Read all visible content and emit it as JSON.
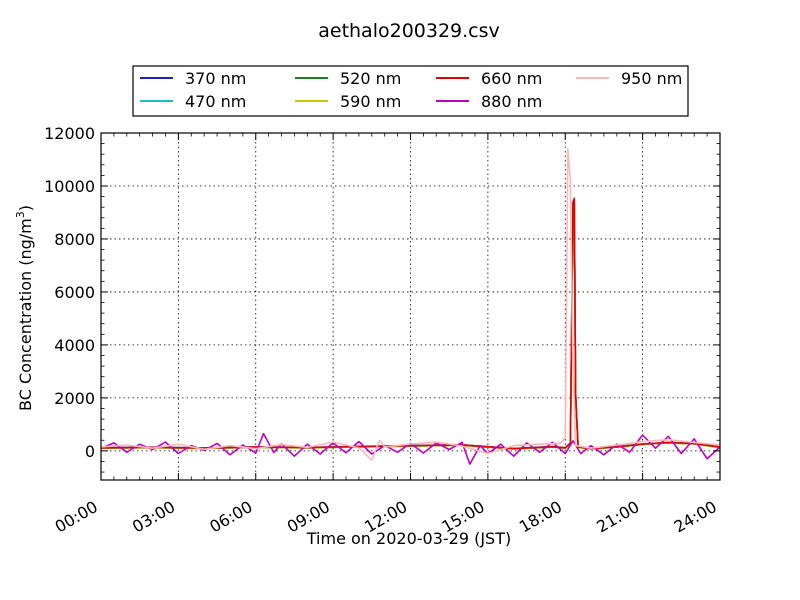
{
  "chart_data": {
    "type": "line",
    "title": "aethalo200329.csv",
    "xlabel": "Time on 2020-03-29 (JST)",
    "ylabel_main": "BC Concentration (ng/m",
    "ylabel_sup": "3",
    "ylabel_end": ")",
    "xlim_hours": [
      0,
      24
    ],
    "ylim": [
      -1100,
      12000
    ],
    "grid": true,
    "legend_placement": "top-center",
    "x_ticks": [
      {
        "h": 0,
        "label": "00:00"
      },
      {
        "h": 3,
        "label": "03:00"
      },
      {
        "h": 6,
        "label": "06:00"
      },
      {
        "h": 9,
        "label": "09:00"
      },
      {
        "h": 12,
        "label": "12:00"
      },
      {
        "h": 15,
        "label": "15:00"
      },
      {
        "h": 18,
        "label": "18:00"
      },
      {
        "h": 21,
        "label": "21:00"
      },
      {
        "h": 24,
        "label": "24:00"
      }
    ],
    "y_ticks": [
      {
        "v": 0,
        "label": "0"
      },
      {
        "v": 2000,
        "label": "2000"
      },
      {
        "v": 4000,
        "label": "4000"
      },
      {
        "v": 6000,
        "label": "6000"
      },
      {
        "v": 8000,
        "label": "8000"
      },
      {
        "v": 10000,
        "label": "10000"
      },
      {
        "v": 12000,
        "label": "12000"
      }
    ],
    "series": [
      {
        "name": "370 nm",
        "color": "#1f1fbf",
        "points": [
          [
            0,
            120
          ],
          [
            2,
            140
          ],
          [
            4,
            110
          ],
          [
            6,
            150
          ],
          [
            8,
            130
          ],
          [
            10,
            170
          ],
          [
            12,
            200
          ],
          [
            14,
            230
          ],
          [
            16,
            90
          ],
          [
            17.5,
            160
          ],
          [
            18.0,
            120
          ],
          [
            18.2,
            300
          ],
          [
            18.3,
            9400
          ],
          [
            18.35,
            9500
          ],
          [
            18.4,
            2200
          ],
          [
            18.5,
            150
          ],
          [
            19,
            90
          ],
          [
            20,
            160
          ],
          [
            21,
            260
          ],
          [
            22,
            320
          ],
          [
            23,
            280
          ],
          [
            24,
            150
          ]
        ]
      },
      {
        "name": "470 nm",
        "color": "#17becf",
        "points": [
          [
            0,
            110
          ],
          [
            2,
            130
          ],
          [
            4,
            100
          ],
          [
            6,
            140
          ],
          [
            8,
            120
          ],
          [
            10,
            160
          ],
          [
            12,
            190
          ],
          [
            14,
            220
          ],
          [
            16,
            80
          ],
          [
            17.5,
            150
          ],
          [
            18.0,
            110
          ],
          [
            18.2,
            280
          ],
          [
            18.3,
            9300
          ],
          [
            18.35,
            9550
          ],
          [
            18.4,
            2100
          ],
          [
            18.5,
            140
          ],
          [
            19,
            80
          ],
          [
            20,
            150
          ],
          [
            21,
            250
          ],
          [
            22,
            310
          ],
          [
            23,
            270
          ],
          [
            24,
            140
          ]
        ]
      },
      {
        "name": "520 nm",
        "color": "#208020",
        "points": [
          [
            0,
            100
          ],
          [
            2,
            120
          ],
          [
            4,
            90
          ],
          [
            6,
            130
          ],
          [
            8,
            110
          ],
          [
            10,
            150
          ],
          [
            12,
            180
          ],
          [
            14,
            210
          ],
          [
            16,
            70
          ],
          [
            17.5,
            140
          ],
          [
            18.0,
            100
          ],
          [
            18.2,
            260
          ],
          [
            18.3,
            9200
          ],
          [
            18.35,
            9450
          ],
          [
            18.4,
            2000
          ],
          [
            18.5,
            130
          ],
          [
            19,
            70
          ],
          [
            20,
            140
          ],
          [
            21,
            240
          ],
          [
            22,
            300
          ],
          [
            23,
            260
          ],
          [
            24,
            130
          ]
        ]
      },
      {
        "name": "590 nm",
        "color": "#c8c800",
        "points": [
          [
            0,
            105
          ],
          [
            2,
            125
          ],
          [
            4,
            95
          ],
          [
            6,
            135
          ],
          [
            8,
            115
          ],
          [
            10,
            155
          ],
          [
            12,
            185
          ],
          [
            14,
            215
          ],
          [
            16,
            75
          ],
          [
            17.5,
            145
          ],
          [
            18.0,
            105
          ],
          [
            18.2,
            270
          ],
          [
            18.3,
            9250
          ],
          [
            18.35,
            9480
          ],
          [
            18.4,
            2050
          ],
          [
            18.5,
            135
          ],
          [
            19,
            75
          ],
          [
            20,
            145
          ],
          [
            21,
            245
          ],
          [
            22,
            305
          ],
          [
            23,
            265
          ],
          [
            24,
            135
          ]
        ]
      },
      {
        "name": "660 nm",
        "color": "#e00000",
        "points": [
          [
            0,
            115
          ],
          [
            2,
            135
          ],
          [
            4,
            105
          ],
          [
            6,
            145
          ],
          [
            8,
            125
          ],
          [
            10,
            165
          ],
          [
            12,
            195
          ],
          [
            14,
            225
          ],
          [
            16,
            85
          ],
          [
            17.5,
            155
          ],
          [
            18.0,
            115
          ],
          [
            18.2,
            290
          ],
          [
            18.3,
            9350
          ],
          [
            18.35,
            9520
          ],
          [
            18.4,
            2150
          ],
          [
            18.5,
            145
          ],
          [
            19,
            85
          ],
          [
            20,
            155
          ],
          [
            21,
            255
          ],
          [
            22,
            315
          ],
          [
            23,
            275
          ],
          [
            24,
            145
          ]
        ]
      },
      {
        "name": "880 nm",
        "color": "#bf00bf",
        "points": [
          [
            0,
            100
          ],
          [
            0.5,
            300
          ],
          [
            1,
            -50
          ],
          [
            1.5,
            250
          ],
          [
            2,
            50
          ],
          [
            2.5,
            330
          ],
          [
            3,
            -100
          ],
          [
            3.5,
            200
          ],
          [
            4,
            20
          ],
          [
            4.5,
            280
          ],
          [
            5,
            -150
          ],
          [
            5.5,
            220
          ],
          [
            6,
            -80
          ],
          [
            6.3,
            650
          ],
          [
            6.7,
            -60
          ],
          [
            7,
            260
          ],
          [
            7.5,
            -200
          ],
          [
            8,
            250
          ],
          [
            8.5,
            -120
          ],
          [
            9,
            300
          ],
          [
            9.5,
            -70
          ],
          [
            10,
            350
          ],
          [
            10.5,
            -120
          ],
          [
            11,
            200
          ],
          [
            11.5,
            -50
          ],
          [
            12,
            280
          ],
          [
            12.5,
            -80
          ],
          [
            13,
            300
          ],
          [
            13.5,
            50
          ],
          [
            14,
            320
          ],
          [
            14.3,
            -500
          ],
          [
            14.7,
            200
          ],
          [
            15,
            -100
          ],
          [
            15.5,
            250
          ],
          [
            16,
            -200
          ],
          [
            16.5,
            300
          ],
          [
            17,
            -50
          ],
          [
            17.5,
            320
          ],
          [
            18,
            -100
          ],
          [
            18.3,
            380
          ],
          [
            18.6,
            -100
          ],
          [
            19,
            200
          ],
          [
            19.5,
            -150
          ],
          [
            20,
            250
          ],
          [
            20.5,
            -50
          ],
          [
            21,
            600
          ],
          [
            21.5,
            100
          ],
          [
            22,
            550
          ],
          [
            22.5,
            -100
          ],
          [
            23,
            450
          ],
          [
            23.5,
            -300
          ],
          [
            24,
            150
          ]
        ]
      },
      {
        "name": "950 nm",
        "color": "#ffb6b6",
        "points": [
          [
            0,
            150
          ],
          [
            1,
            220
          ],
          [
            2,
            100
          ],
          [
            3,
            250
          ],
          [
            4,
            60
          ],
          [
            5,
            200
          ],
          [
            6,
            80
          ],
          [
            7,
            240
          ],
          [
            8,
            130
          ],
          [
            9,
            330
          ],
          [
            10,
            110
          ],
          [
            10.5,
            -350
          ],
          [
            10.8,
            400
          ],
          [
            11,
            150
          ],
          [
            12,
            260
          ],
          [
            13,
            330
          ],
          [
            14,
            180
          ],
          [
            15,
            -100
          ],
          [
            16,
            200
          ],
          [
            17,
            250
          ],
          [
            17.8,
            280
          ],
          [
            18.0,
            500
          ],
          [
            18.1,
            11400
          ],
          [
            18.2,
            10200
          ],
          [
            18.3,
            3000
          ],
          [
            18.4,
            200
          ],
          [
            19,
            100
          ],
          [
            20,
            220
          ],
          [
            21,
            350
          ],
          [
            22,
            420
          ],
          [
            23,
            320
          ],
          [
            24,
            220
          ]
        ]
      }
    ]
  }
}
